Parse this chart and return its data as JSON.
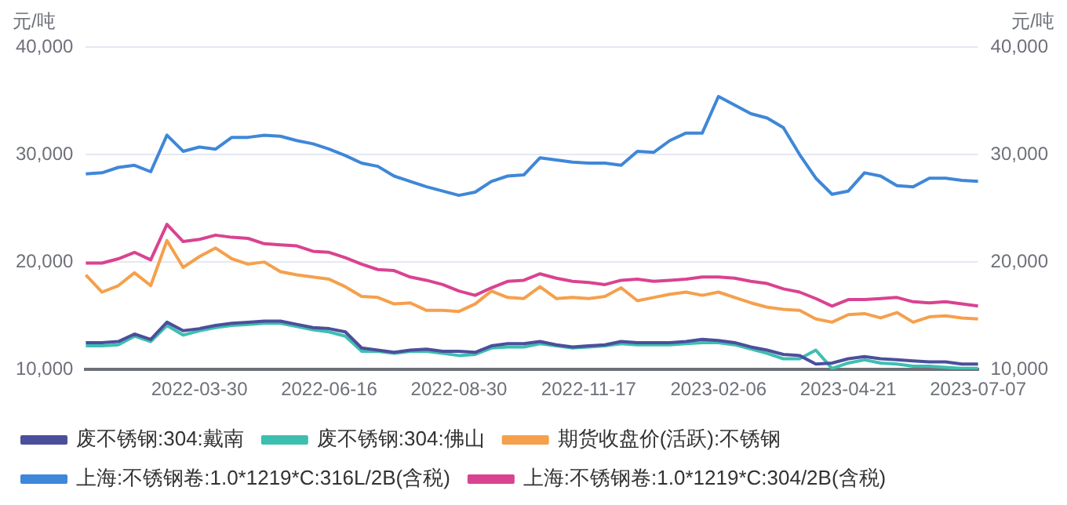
{
  "chart_data": {
    "type": "line",
    "ylabel": "元/吨",
    "y2label": "元/吨",
    "categories": [
      null,
      null,
      null,
      null,
      null,
      null,
      null,
      "2022-03-30",
      null,
      null,
      null,
      null,
      null,
      null,
      null,
      "2022-06-16",
      null,
      null,
      null,
      null,
      null,
      null,
      null,
      "2022-08-30",
      null,
      null,
      null,
      null,
      null,
      null,
      null,
      "2022-11-17",
      null,
      null,
      null,
      null,
      null,
      null,
      null,
      "2023-02-06",
      null,
      null,
      null,
      null,
      null,
      null,
      null,
      "2023-04-21",
      null,
      null,
      null,
      null,
      null,
      null,
      null,
      "2023-07-07"
    ],
    "series": [
      {
        "name": "废不锈钢:304:戴南",
        "color": "#4b4f9b",
        "values": [
          12500,
          12500,
          12600,
          13300,
          12800,
          14400,
          13600,
          13800,
          14100,
          14300,
          14400,
          14500,
          14500,
          14200,
          13900,
          13800,
          13500,
          12000,
          11800,
          11600,
          11800,
          11900,
          11700,
          11700,
          11600,
          12200,
          12400,
          12400,
          12600,
          12300,
          12100,
          12200,
          12300,
          12600,
          12500,
          12500,
          12500,
          12600,
          12800,
          12700,
          12500,
          12100,
          11800,
          11400,
          11300,
          10500,
          10600,
          11000,
          11200,
          11000,
          10900,
          10800,
          10700,
          10700,
          10500,
          10500
        ]
      },
      {
        "name": "废不锈钢:304:佛山",
        "color": "#3dbfb0",
        "values": [
          12200,
          12200,
          12300,
          13100,
          12600,
          14100,
          13200,
          13600,
          13900,
          14100,
          14200,
          14300,
          14300,
          14000,
          13700,
          13500,
          13100,
          11700,
          11700,
          11500,
          11700,
          11700,
          11500,
          11300,
          11400,
          12000,
          12100,
          12100,
          12400,
          12200,
          12000,
          12100,
          12200,
          12400,
          12300,
          12300,
          12300,
          12400,
          12500,
          12500,
          12300,
          11900,
          11500,
          11000,
          11000,
          11800,
          10100,
          10600,
          10900,
          10600,
          10500,
          10300,
          10300,
          10200,
          10100,
          10100
        ]
      },
      {
        "name": "期货收盘价(活跃):不锈钢",
        "color": "#f5a04c",
        "values": [
          18800,
          17200,
          17800,
          19000,
          17800,
          22000,
          19500,
          20500,
          21300,
          20300,
          19800,
          20000,
          19100,
          18800,
          18600,
          18400,
          17700,
          16800,
          16700,
          16100,
          16200,
          15500,
          15500,
          15400,
          16100,
          17300,
          16700,
          16600,
          17700,
          16600,
          16700,
          16600,
          16800,
          17600,
          16400,
          16700,
          17000,
          17200,
          16900,
          17200,
          16700,
          16200,
          15800,
          15600,
          15500,
          14700,
          14400,
          15100,
          15200,
          14800,
          15300,
          14400,
          14900,
          15000,
          14800,
          14700
        ]
      },
      {
        "name": "上海:不锈钢卷:1.0*1219*C:316L/2B(含税)",
        "color": "#3f87d8",
        "values": [
          28200,
          28300,
          28800,
          29000,
          28400,
          31800,
          30300,
          30700,
          30500,
          31600,
          31600,
          31800,
          31700,
          31300,
          31000,
          30500,
          29900,
          29200,
          28900,
          28000,
          27500,
          27000,
          26600,
          26200,
          26500,
          27500,
          28000,
          28100,
          29700,
          29500,
          29300,
          29200,
          29200,
          29000,
          30300,
          30200,
          31300,
          32000,
          32000,
          35400,
          34600,
          33800,
          33400,
          32500,
          30000,
          27800,
          26300,
          26600,
          28300,
          28000,
          27100,
          27000,
          27800,
          27800,
          27600,
          27500
        ]
      },
      {
        "name": "上海:不锈钢卷:1.0*1219*C:304/2B(含税)",
        "color": "#d94390",
        "values": [
          19900,
          19900,
          20300,
          20900,
          20200,
          23500,
          21900,
          22100,
          22500,
          22300,
          22200,
          21700,
          21600,
          21500,
          21000,
          20900,
          20400,
          19800,
          19300,
          19200,
          18600,
          18300,
          17900,
          17300,
          16900,
          17600,
          18200,
          18300,
          18900,
          18500,
          18200,
          18100,
          17900,
          18300,
          18400,
          18200,
          18300,
          18400,
          18600,
          18600,
          18500,
          18200,
          18000,
          17500,
          17200,
          16600,
          15900,
          16500,
          16500,
          16600,
          16700,
          16300,
          16200,
          16300,
          16100,
          15900
        ]
      }
    ],
    "ylim": [
      10000,
      40000
    ],
    "yticks": [
      {
        "value": 10000,
        "label": "10,000"
      },
      {
        "value": 20000,
        "label": "20,000"
      },
      {
        "value": 30000,
        "label": "30,000"
      },
      {
        "value": 40000,
        "label": "40,000"
      }
    ],
    "y2lim": [
      10000,
      40000
    ],
    "y2ticks": [
      {
        "value": 10000,
        "label": "10,000"
      },
      {
        "value": 20000,
        "label": "20,000"
      },
      {
        "value": 30000,
        "label": "30,000"
      },
      {
        "value": 40000,
        "label": "40,000"
      }
    ],
    "grid": "y",
    "legend": "bottom",
    "marker": "none",
    "line_style": "solid"
  }
}
